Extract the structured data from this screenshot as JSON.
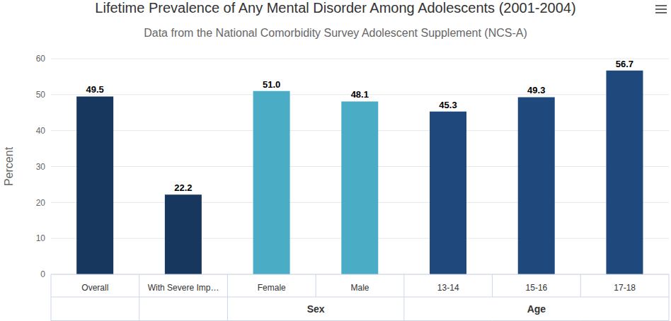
{
  "chart_data": {
    "type": "bar",
    "title": "Lifetime Prevalence of Any Mental Disorder Among Adolescents (2001-2004)",
    "subtitle": "Data from the National Comorbidity Survey Adolescent Supplement (NCS-A)",
    "y_label": "Percent",
    "categories": [
      "Overall",
      "With Severe Imp…",
      "Female",
      "Male",
      "13-14",
      "15-16",
      "17-18"
    ],
    "category_groups": [
      null,
      null,
      "Sex",
      "Sex",
      "Age",
      "Age",
      "Age"
    ],
    "values": [
      49.5,
      22.2,
      51.0,
      48.1,
      45.3,
      49.3,
      56.7
    ],
    "value_labels": [
      "49.5",
      "22.2",
      "51.0",
      "48.1",
      "45.3",
      "49.3",
      "56.7"
    ],
    "colors": [
      "#17375e",
      "#17375e",
      "#4bacc6",
      "#4bacc6",
      "#1f497d",
      "#1f497d",
      "#1f497d"
    ],
    "ylim": [
      0,
      60
    ],
    "yticks": [
      0,
      10,
      20,
      30,
      40,
      50,
      60
    ],
    "grid": true,
    "data_labels": true
  }
}
